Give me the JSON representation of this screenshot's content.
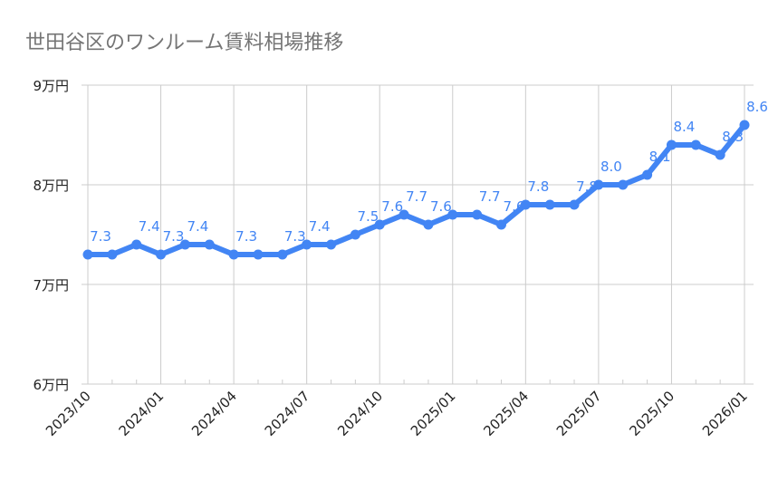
{
  "chart_data": {
    "type": "line",
    "title": "世田谷区のワンルーム賃料相場推移",
    "xlabel": "",
    "ylabel": "",
    "ylim": [
      6,
      9
    ],
    "yticks": [
      6,
      7,
      8,
      9
    ],
    "ytick_labels": [
      "6万円",
      "7万円",
      "8万円",
      "9万円"
    ],
    "x": [
      "2023/10",
      "2023/11",
      "2023/12",
      "2024/01",
      "2024/02",
      "2024/03",
      "2024/04",
      "2024/05",
      "2024/06",
      "2024/07",
      "2024/08",
      "2024/09",
      "2024/10",
      "2024/11",
      "2024/12",
      "2025/01",
      "2025/02",
      "2025/03",
      "2025/04",
      "2025/05",
      "2025/06",
      "2025/07",
      "2025/08",
      "2025/09",
      "2025/10",
      "2025/11",
      "2025/12",
      "2026/01"
    ],
    "xtick_labels": [
      "2023/10",
      "2024/01",
      "2024/04",
      "2024/07",
      "2024/10",
      "2025/01",
      "2025/04",
      "2025/07",
      "2025/10",
      "2026/01"
    ],
    "values": [
      7.3,
      7.3,
      7.4,
      7.3,
      7.4,
      7.4,
      7.3,
      7.3,
      7.3,
      7.4,
      7.4,
      7.5,
      7.6,
      7.7,
      7.6,
      7.7,
      7.7,
      7.6,
      7.8,
      7.8,
      7.8,
      8.0,
      8.0,
      8.1,
      8.4,
      8.4,
      8.3,
      8.6
    ],
    "data_labels": [
      "7.3",
      null,
      "7.4",
      "7.3",
      "7.4",
      null,
      "7.3",
      null,
      "7.3",
      "7.4",
      null,
      "7.5",
      "7.6",
      "7.7",
      "7.6",
      null,
      "7.7",
      "7.6",
      "7.8",
      null,
      "7.8",
      "8.0",
      null,
      "8.1",
      "8.4",
      null,
      "8.3",
      "8.6"
    ],
    "grid": true,
    "legend": "none",
    "colors": {
      "line": "#4285f4",
      "grid": "#cccccc",
      "title": "#757575"
    }
  }
}
